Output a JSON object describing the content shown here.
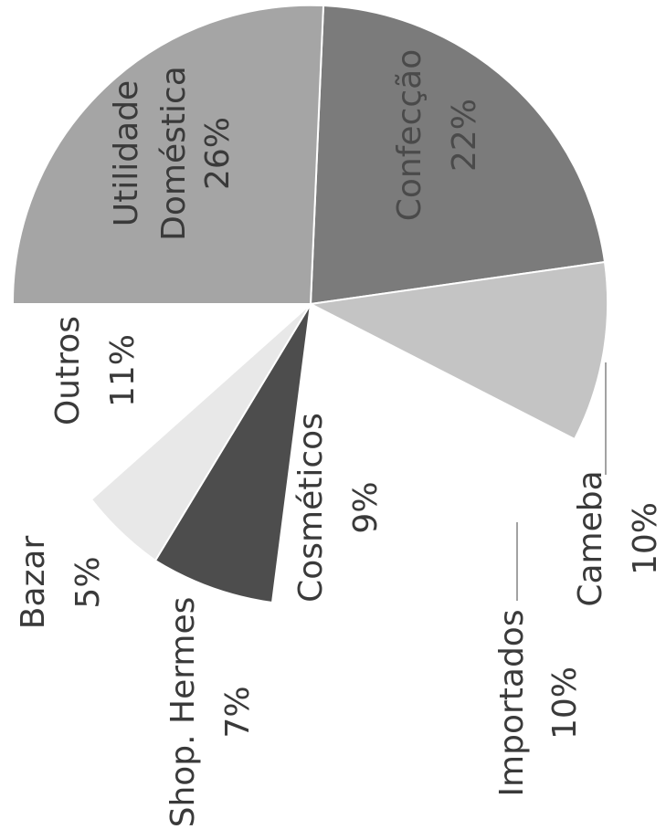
{
  "chart_data": {
    "type": "pie",
    "slices": [
      {
        "label": "Confecção",
        "value": "22%",
        "color": "#7b7b7b"
      },
      {
        "label": "Cameba",
        "value": "10%",
        "color": "#c4c4c4"
      },
      {
        "label": "Importados",
        "value": "10%",
        "color": "#ffffff"
      },
      {
        "label": "Cosméticos",
        "value": "9%",
        "color": "#ffffff"
      },
      {
        "label": "Shop. Hermes",
        "value": "7%",
        "color": "#4d4d4d"
      },
      {
        "label": "Bazar",
        "value": "5%",
        "color": "#e8e8e8"
      },
      {
        "label": "Outros",
        "value": "11%",
        "color": "#ffffff"
      },
      {
        "label": "Utilidade Doméstica",
        "value": "26%",
        "color": "#a5a5a5"
      }
    ]
  }
}
